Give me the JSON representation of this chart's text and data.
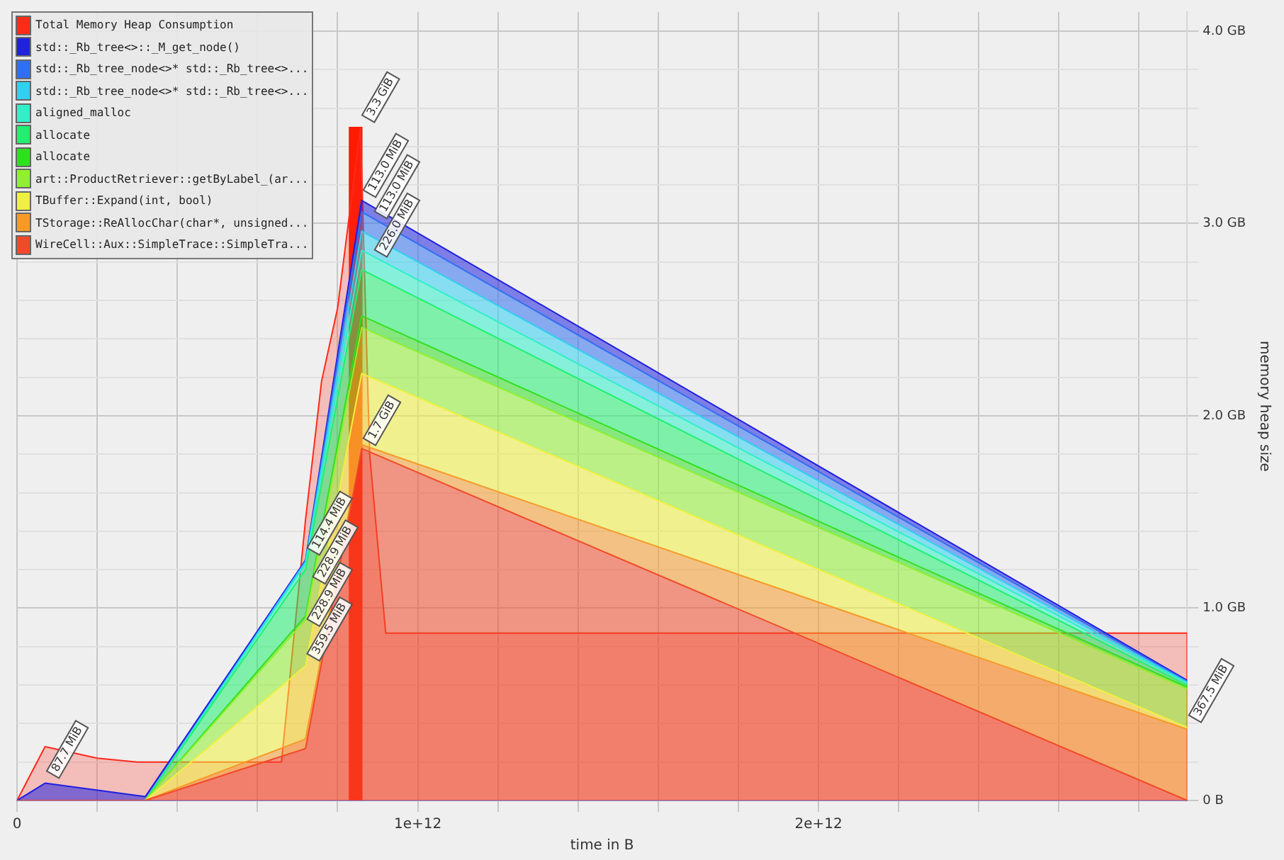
{
  "chart_data": {
    "type": "area",
    "stacked": true,
    "xlabel": "time in B",
    "ylabel": "memory heap size",
    "grid": true,
    "legend": "top left",
    "marker": "none",
    "x": [
      0,
      70000000000,
      320000000000,
      720000000000,
      860000000000,
      2920000000000
    ],
    "xlim": [
      0,
      2920000000000
    ],
    "xticks": [
      0,
      {
        "value": 200000000000,
        "label": null
      },
      {
        "value": 400000000000,
        "label": null
      },
      {
        "value": 600000000000,
        "label": null
      },
      {
        "value": 800000000000,
        "label": null
      },
      {
        "value": 1000000000000,
        "label": "1e+12"
      },
      {
        "value": 1200000000000,
        "label": null
      },
      {
        "value": 1400000000000,
        "label": null
      },
      {
        "value": 1600000000000,
        "label": null
      },
      {
        "value": 1800000000000,
        "label": null
      },
      {
        "value": 2000000000000,
        "label": "2e+12"
      },
      {
        "value": 2200000000000,
        "label": null
      },
      {
        "value": 2400000000000,
        "label": null
      },
      {
        "value": 2600000000000,
        "label": null
      },
      {
        "value": 2800000000000,
        "label": null
      }
    ],
    "ylim": [
      0,
      4.1
    ],
    "yticks": [
      {
        "value": 0,
        "label": "0 B"
      },
      {
        "value": 0.2,
        "label": null
      },
      {
        "value": 0.4,
        "label": null
      },
      {
        "value": 0.6,
        "label": null
      },
      {
        "value": 0.8,
        "label": null
      },
      {
        "value": 1,
        "label": "1.0 GB"
      },
      {
        "value": 1.2,
        "label": null
      },
      {
        "value": 1.4,
        "label": null
      },
      {
        "value": 1.6,
        "label": null
      },
      {
        "value": 1.8,
        "label": null
      },
      {
        "value": 2,
        "label": "2.0 GB"
      },
      {
        "value": 2.2,
        "label": null
      },
      {
        "value": 2.4,
        "label": null
      },
      {
        "value": 2.6,
        "label": null
      },
      {
        "value": 2.8,
        "label": null
      },
      {
        "value": 3,
        "label": "3.0 GB"
      },
      {
        "value": 3.2,
        "label": null
      },
      {
        "value": 3.4,
        "label": null
      },
      {
        "value": 3.6,
        "label": null
      },
      {
        "value": 3.8,
        "label": null
      },
      {
        "value": 4,
        "label": "4.0 GB"
      }
    ],
    "series": [
      {
        "name": "WireCell::Aux::SimpleTrace::SimpleTra...",
        "color": "#f04a2a",
        "values": [
          0,
          0,
          0,
          0.27,
          1.83,
          0
        ]
      },
      {
        "name": "TStorage::ReAllocChar(char*, unsigned...",
        "color": "#f59a2a",
        "values": [
          0,
          0,
          0,
          0.05,
          0.02,
          0.37
        ]
      },
      {
        "name": "TBuffer::Expand(int, bool)",
        "color": "#f0f040",
        "values": [
          0,
          0,
          0,
          0.38,
          0.37,
          0.01
        ]
      },
      {
        "name": "art::ProductRetriever::getByLabel_(ar...",
        "color": "#90f030",
        "values": [
          0,
          0,
          0,
          0.24,
          0.24,
          0.2
        ]
      },
      {
        "name": "allocate",
        "color": "#30e020",
        "values": [
          0,
          0,
          0,
          0.02,
          0.06,
          0.01
        ]
      },
      {
        "name": "allocate",
        "color": "#20f070",
        "values": [
          0,
          0,
          0,
          0.24,
          0.24,
          0.01
        ]
      },
      {
        "name": "aligned_malloc",
        "color": "#30f0c8",
        "values": [
          0,
          0,
          0,
          0.03,
          0.1,
          0.01
        ]
      },
      {
        "name": "std::_Rb_tree_node<>* std::_Rb_tree<>...",
        "color": "#30d0f0",
        "values": [
          0,
          0,
          0,
          0.01,
          0.1,
          0.005
        ]
      },
      {
        "name": "std::_Rb_tree_node<>* std::_Rb_tree<>...",
        "color": "#3070f0",
        "values": [
          0,
          0,
          0,
          0.005,
          0.1,
          0.005
        ]
      },
      {
        "name": "std::_Rb_tree<>::_M_get_node()",
        "color": "#2020e0",
        "values": [
          0,
          0.09,
          0.02,
          0.005,
          0.06,
          0.005
        ]
      },
      {
        "name": "Total Memory Heap Consumption",
        "type": "line",
        "color": "#ff2a1a",
        "x": [
          0,
          70000000000,
          200000000000,
          300000000000,
          660000000000,
          720000000000,
          760000000000,
          800000000000,
          857000000000,
          880000000000,
          920000000000,
          2920000000000,
          2920000000000
        ],
        "values": [
          0,
          0.28,
          0.22,
          0.2,
          0.2,
          1.46,
          2.18,
          2.56,
          3.5,
          1.8,
          0.87,
          0.87,
          0
        ]
      },
      {
        "type": "bar",
        "color": "#ff1a00",
        "x": [
          845000000000
        ],
        "values": [
          3.5
        ]
      }
    ],
    "annotations": [
      {
        "text": "3.3 GiB",
        "x": 857000000000,
        "y": 3.5
      },
      {
        "text": "113.0 MiB",
        "x": 860000000000,
        "y": 3.11
      },
      {
        "text": "113.0 MiB",
        "x": 860000000000,
        "y": 3.0
      },
      {
        "text": "226.0 MiB",
        "x": 860000000000,
        "y": 2.8
      },
      {
        "text": "1.7 GiB",
        "x": 860000000000,
        "y": 1.82
      },
      {
        "text": "114.4 MiB",
        "x": 720000000000,
        "y": 1.25
      },
      {
        "text": "228.9 MiB",
        "x": 720000000000,
        "y": 1.1
      },
      {
        "text": "228.9 MiB",
        "x": 720000000000,
        "y": 0.88
      },
      {
        "text": "359.5 MiB",
        "x": 720000000000,
        "y": 0.7
      },
      {
        "text": "87.7 MiB",
        "x": 70000000000,
        "y": 0.09
      },
      {
        "text": "367.5 MiB",
        "x": 2920000000000,
        "y": 0.38
      }
    ]
  }
}
